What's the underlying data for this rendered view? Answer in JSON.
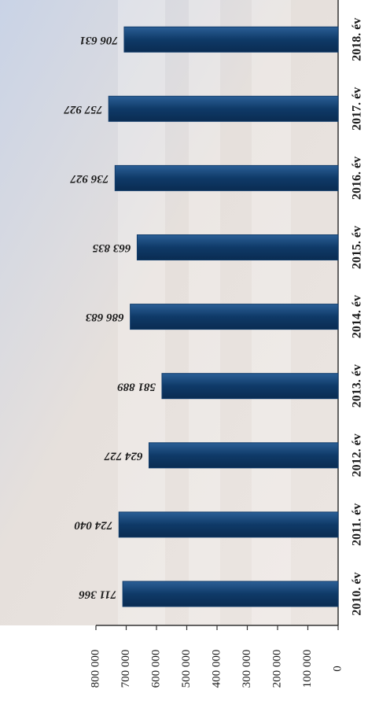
{
  "chart_data": {
    "type": "bar",
    "orientation": "horizontal",
    "categories": [
      "2010. év",
      "2011. év",
      "2012. év",
      "2013. év",
      "2014. év",
      "2015. év",
      "2016. év",
      "2017. év",
      "2018. év"
    ],
    "values": [
      711366,
      724040,
      624727,
      581889,
      686683,
      663835,
      736927,
      757927,
      706631
    ],
    "value_labels": [
      "711 366",
      "724 040",
      "624 727",
      "581 889",
      "686 683",
      "663 835",
      "736 927",
      "757 927",
      "706 631"
    ],
    "color": "#123d6b",
    "xlim": [
      0,
      800000
    ],
    "xticks": [
      0,
      {
        "value": 100000,
        "label": "100 000"
      },
      {
        "value": 200000,
        "label": "200 000"
      },
      {
        "value": 300000,
        "label": "300 000"
      },
      {
        "value": 400000,
        "label": "400 000"
      },
      {
        "value": 500000,
        "label": "500 000"
      },
      {
        "value": 600000,
        "label": "600 000"
      },
      {
        "value": 700000,
        "label": "700 000"
      },
      {
        "value": 800000,
        "label": "800 000"
      }
    ]
  }
}
